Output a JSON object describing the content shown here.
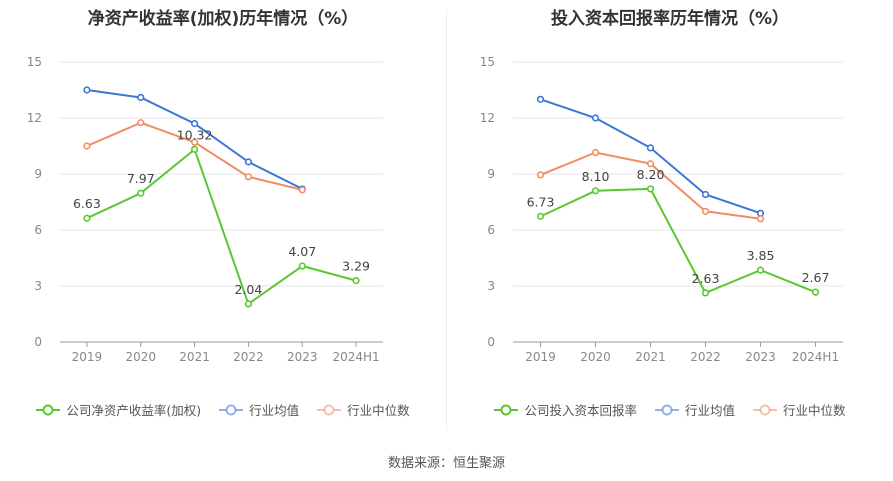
{
  "chart_data": [
    {
      "type": "line",
      "title": "净资产收益率(加权)历年情况（%）",
      "categories": [
        "2019",
        "2020",
        "2021",
        "2022",
        "2023",
        "2024H1"
      ],
      "ylim": [
        0,
        15
      ],
      "yticks": [
        0,
        3,
        6,
        9,
        12,
        15
      ],
      "grid": true,
      "legend_position": "bottom",
      "series": [
        {
          "name": "公司净资产收益率(加权)",
          "color": "#5ac731",
          "values": [
            6.63,
            7.97,
            10.32,
            2.04,
            4.07,
            3.29
          ],
          "labels": [
            "6.63",
            "7.97",
            "10.32",
            "2.04",
            "4.07",
            "3.29"
          ]
        },
        {
          "name": "行业均值",
          "color": "#3a77d8",
          "values": [
            13.5,
            13.1,
            11.7,
            9.65,
            8.2,
            null
          ]
        },
        {
          "name": "行业中位数",
          "color": "#f28c64",
          "values": [
            10.5,
            11.75,
            10.7,
            8.85,
            8.15,
            null
          ]
        }
      ]
    },
    {
      "type": "line",
      "title": "投入资本回报率历年情况（%）",
      "categories": [
        "2019",
        "2020",
        "2021",
        "2022",
        "2023",
        "2024H1"
      ],
      "ylim": [
        0,
        15
      ],
      "yticks": [
        0,
        3,
        6,
        9,
        12,
        15
      ],
      "grid": true,
      "legend_position": "bottom",
      "series": [
        {
          "name": "公司投入资本回报率",
          "color": "#5ac731",
          "values": [
            6.73,
            8.1,
            8.2,
            2.63,
            3.85,
            2.67
          ],
          "labels": [
            "6.73",
            "8.10",
            "8.20",
            "2.63",
            "3.85",
            "2.67"
          ]
        },
        {
          "name": "行业均值",
          "color": "#3a77d8",
          "values": [
            13.0,
            12.0,
            10.4,
            7.9,
            6.9,
            null
          ]
        },
        {
          "name": "行业中位数",
          "color": "#f28c64",
          "values": [
            8.95,
            10.15,
            9.55,
            7.0,
            6.6,
            null
          ]
        }
      ]
    }
  ],
  "source": "数据来源：恒生聚源"
}
